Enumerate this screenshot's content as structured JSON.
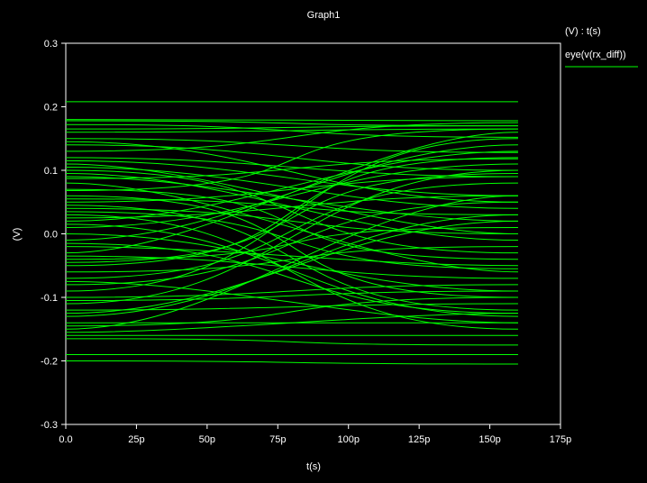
{
  "chart_data": {
    "type": "line",
    "title": "Graph1",
    "xlabel": "t(s)",
    "ylabel": "(V)",
    "xlim": [
      0,
      175
    ],
    "ylim": [
      -0.3,
      0.3
    ],
    "x_ticks": [
      0,
      25,
      50,
      75,
      100,
      125,
      150,
      175
    ],
    "x_tick_labels": [
      "0.0",
      "25p",
      "50p",
      "75p",
      "100p",
      "125p",
      "150p",
      "175p"
    ],
    "y_ticks": [
      0.3,
      0.2,
      0.1,
      0.0,
      -0.1,
      -0.2,
      -0.3
    ],
    "y_tick_labels": [
      "0.3",
      "0.2",
      "0.1",
      "0.0",
      "-0.1",
      "-0.2",
      "-0.3"
    ],
    "grid": false,
    "legend": {
      "placement": "top-right",
      "header": "(V) : t(s)",
      "entries": [
        {
          "name": "eye(v(rx_diff))",
          "color": "#00ff00"
        }
      ]
    },
    "series_color": "#00ff00",
    "background": "#000000",
    "axis_color": "#ffffff",
    "series": [
      {
        "name": "eye(v(rx_diff))",
        "trace_endpoints": [
          [
            0.208,
            0.208
          ],
          [
            0.18,
            0.178
          ],
          [
            0.178,
            0.17
          ],
          [
            0.165,
            0.17
          ],
          [
            0.172,
            0.152
          ],
          [
            0.16,
            0.165
          ],
          [
            0.15,
            0.128
          ],
          [
            0.14,
            0.1
          ],
          [
            0.12,
            0.09
          ],
          [
            0.115,
            0.06
          ],
          [
            0.105,
            0.04
          ],
          [
            0.095,
            -0.01
          ],
          [
            0.09,
            0.02
          ],
          [
            0.08,
            -0.06
          ],
          [
            0.07,
            -0.04
          ],
          [
            0.06,
            -0.1
          ],
          [
            0.055,
            0.03
          ],
          [
            0.045,
            -0.12
          ],
          [
            0.04,
            0.0
          ],
          [
            0.03,
            -0.15
          ],
          [
            0.025,
            0.06
          ],
          [
            0.015,
            -0.13
          ],
          [
            0.01,
            0.11
          ],
          [
            0.0,
            -0.09
          ],
          [
            -0.01,
            0.14
          ],
          [
            -0.02,
            -0.05
          ],
          [
            -0.03,
            0.16
          ],
          [
            -0.04,
            0.01
          ],
          [
            -0.05,
            0.12
          ],
          [
            -0.06,
            -0.02
          ],
          [
            -0.07,
            0.08
          ],
          [
            -0.08,
            0.05
          ],
          [
            -0.09,
            0.15
          ],
          [
            -0.1,
            -0.08
          ],
          [
            -0.11,
            0.1
          ],
          [
            -0.12,
            -0.11
          ],
          [
            -0.13,
            0.03
          ],
          [
            -0.14,
            -0.14
          ],
          [
            -0.15,
            0.06
          ],
          [
            -0.16,
            -0.16
          ],
          [
            -0.155,
            -0.125
          ],
          [
            -0.165,
            -0.175
          ],
          [
            -0.19,
            -0.19
          ],
          [
            -0.2,
            -0.205
          ],
          [
            0.1,
            -0.03
          ],
          [
            0.13,
            0.175
          ],
          [
            -0.105,
            -0.09
          ],
          [
            0.05,
            0.09
          ],
          [
            -0.035,
            -0.07
          ],
          [
            0.145,
            0.05
          ],
          [
            -0.125,
            0.02
          ],
          [
            0.02,
            0.13
          ],
          [
            -0.075,
            -0.14
          ],
          [
            0.11,
            0.0
          ],
          [
            0.068,
            0.165
          ],
          [
            -0.045,
            0.095
          ],
          [
            0.035,
            -0.055
          ],
          [
            -0.145,
            -0.1
          ],
          [
            0.087,
            0.118
          ],
          [
            -0.015,
            -0.125
          ]
        ]
      }
    ]
  }
}
